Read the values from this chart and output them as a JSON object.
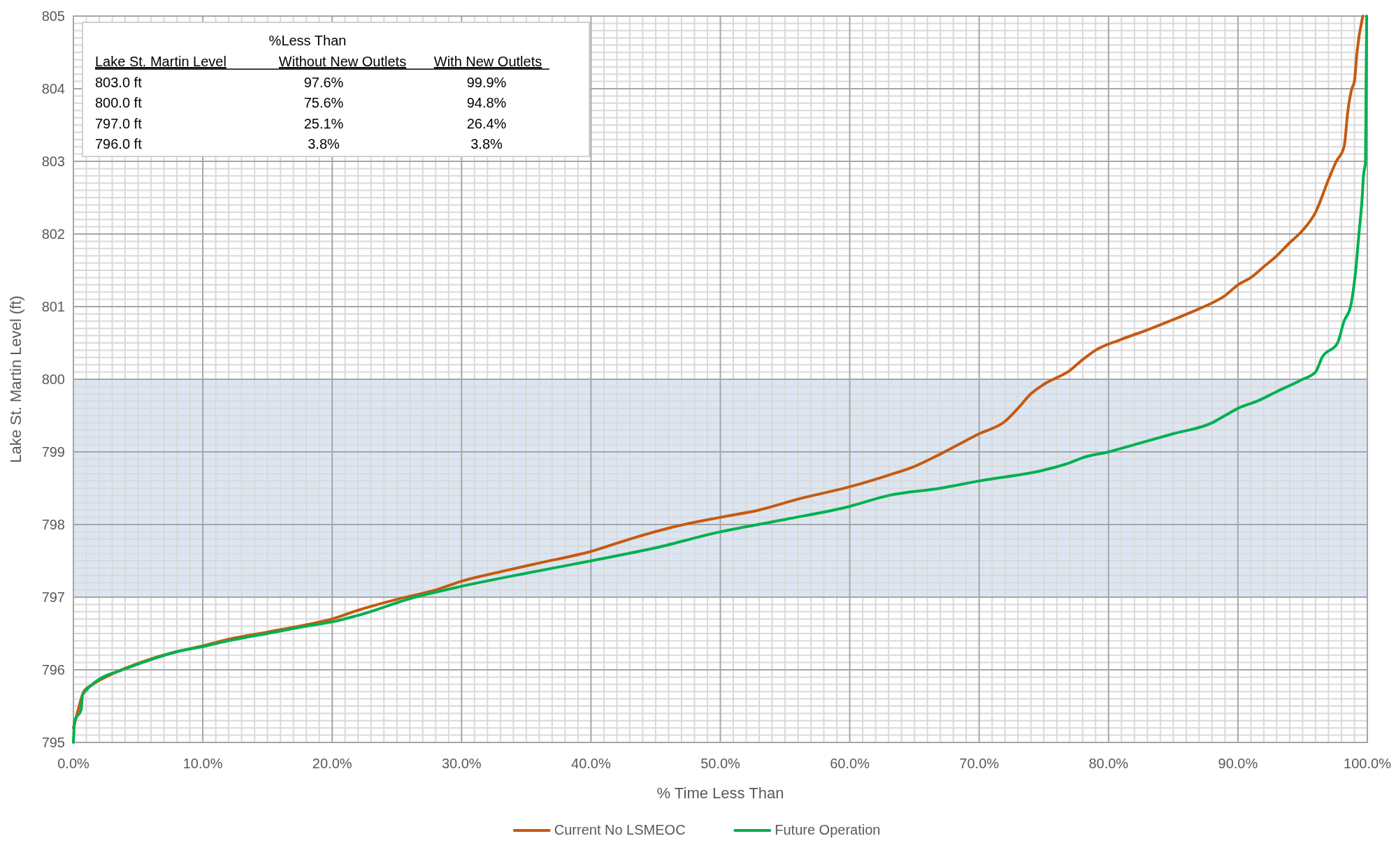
{
  "chart_data": {
    "type": "line",
    "xlabel": "% Time Less Than",
    "ylabel": "Lake St. Martin Level (ft)",
    "xlim": [
      0,
      100
    ],
    "ylim": [
      795,
      805
    ],
    "xticks": [
      {
        "value": 0,
        "label": "0.0%"
      },
      {
        "value": 10,
        "label": "10.0%"
      },
      {
        "value": 20,
        "label": "20.0%"
      },
      {
        "value": 30,
        "label": "30.0%"
      },
      {
        "value": 40,
        "label": "40.0%"
      },
      {
        "value": 50,
        "label": "50.0%"
      },
      {
        "value": 60,
        "label": "60.0%"
      },
      {
        "value": 70,
        "label": "70.0%"
      },
      {
        "value": 80,
        "label": "80.0%"
      },
      {
        "value": 90,
        "label": "90.0%"
      },
      {
        "value": 100,
        "label": "100.0%"
      }
    ],
    "yticks": [
      795,
      796,
      797,
      798,
      799,
      800,
      801,
      802,
      803,
      804,
      805
    ],
    "grid": true,
    "legend": "bottom",
    "marker": "none",
    "line_style": "solid",
    "bands": [
      {
        "axis": "y",
        "from": 797,
        "to": 800,
        "color": "#dce6f2"
      }
    ],
    "annotations": [
      "%Less Than",
      "Lake St. Martin  Level",
      "Without New Outlets",
      "With New Outlets",
      "803.0 ft",
      "97.6%",
      "99.9%",
      "800.0 ft",
      "75.6%",
      "94.8%",
      "797.0 ft",
      "25.1%",
      "26.4%",
      "796.0 ft",
      "3.8%",
      "3.8%"
    ],
    "series": [
      {
        "name": "Current No LSMEOC",
        "color": "#c55a11",
        "x": [
          0,
          0.3,
          0.6,
          0.8,
          1.5,
          2.5,
          4,
          6,
          8,
          10,
          12,
          15,
          18,
          20,
          22,
          25,
          28,
          30,
          33,
          36,
          40,
          43,
          46,
          50,
          53,
          56,
          60,
          63,
          65,
          67,
          70,
          72,
          73,
          74,
          75,
          77,
          78,
          79,
          81,
          83,
          85,
          87,
          88,
          89,
          90,
          91,
          92,
          93,
          94,
          95,
          96,
          97,
          97.6,
          98.2,
          98.5,
          98.8,
          99,
          99.2,
          99.65
        ],
        "values": [
          795.2,
          795.4,
          795.6,
          795.7,
          795.8,
          795.9,
          796.02,
          796.15,
          796.25,
          796.33,
          796.42,
          796.52,
          796.62,
          796.7,
          796.82,
          796.97,
          797.1,
          797.22,
          797.35,
          797.47,
          797.63,
          797.8,
          797.95,
          798.1,
          798.2,
          798.35,
          798.52,
          798.68,
          798.8,
          798.97,
          799.25,
          799.42,
          799.6,
          799.8,
          799.93,
          800.12,
          800.27,
          800.4,
          800.55,
          800.68,
          800.82,
          800.97,
          801.05,
          801.15,
          801.3,
          801.4,
          801.55,
          801.7,
          801.88,
          802.05,
          802.3,
          802.75,
          803.0,
          803.2,
          803.7,
          804.0,
          804.1,
          804.5,
          805.0
        ]
      },
      {
        "name": "Future Operation",
        "color": "#00b050",
        "x": [
          0,
          0.1,
          0.6,
          0.7,
          1,
          2,
          3.8,
          6,
          8,
          10,
          12,
          15,
          18,
          20,
          22,
          26.4,
          30,
          35,
          40,
          45,
          50,
          55,
          60,
          63,
          67,
          70,
          75,
          77,
          78,
          80,
          82,
          85,
          88,
          89,
          90,
          91.5,
          93,
          95,
          96,
          96.5,
          97.7,
          98.2,
          98.7,
          99.1,
          99.35,
          99.6,
          99.7,
          99.86,
          99.9,
          99.95
        ],
        "values": [
          795.0,
          795.3,
          795.45,
          795.65,
          795.72,
          795.87,
          796.0,
          796.14,
          796.25,
          796.32,
          796.4,
          796.5,
          796.6,
          796.66,
          796.75,
          797.0,
          797.15,
          797.33,
          797.5,
          797.68,
          797.9,
          798.07,
          798.25,
          798.4,
          798.5,
          798.6,
          798.75,
          798.85,
          798.92,
          799.0,
          799.1,
          799.25,
          799.4,
          799.5,
          799.6,
          799.7,
          799.83,
          800.0,
          800.1,
          800.3,
          800.5,
          800.8,
          801.0,
          801.5,
          802.0,
          802.5,
          802.8,
          803.0,
          804.0,
          805.0
        ]
      }
    ]
  }
}
